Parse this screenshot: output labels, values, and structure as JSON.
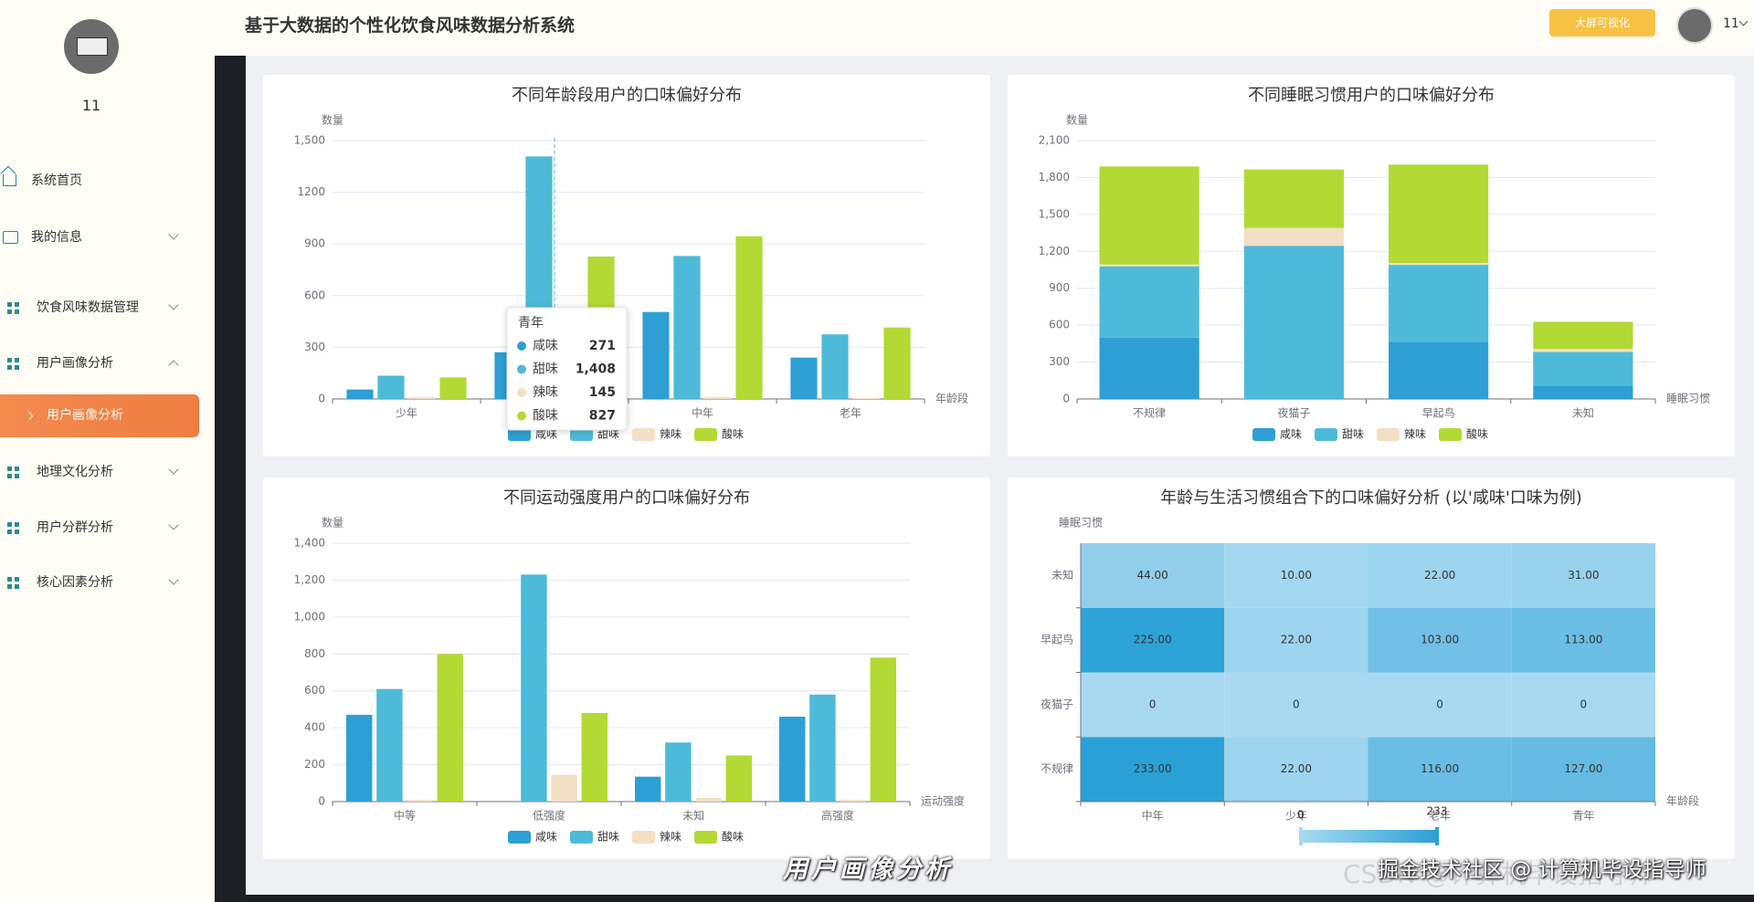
{
  "sidebar": {
    "user_name": "11",
    "menu": [
      "系统首页",
      "我的信息",
      "饮食风味数据管理",
      "用户画像分析",
      "用户画像分析",
      "地理文化分析",
      "用户分群分析",
      "核心因素分析"
    ]
  },
  "header": {
    "title": "基于大数据的个性化饮食风味数据分析系统",
    "button": "大屏可视化",
    "user_name": "11"
  },
  "chart_data": [
    {
      "type": "bar",
      "title": "不同年龄段用户的口味偏好分布",
      "y_label": "数量",
      "x_label": "年龄段",
      "categories": [
        "少年",
        "青年",
        "中年",
        "老年"
      ],
      "series": [
        {
          "name": "咸味",
          "color": "#2e9fd4",
          "values": [
            55,
            271,
            505,
            240
          ]
        },
        {
          "name": "甜味",
          "color": "#4dbad9",
          "values": [
            135,
            1408,
            830,
            375
          ]
        },
        {
          "name": "辣味",
          "color": "#f3dfc3",
          "values": [
            10,
            145,
            12,
            5
          ]
        },
        {
          "name": "酸味",
          "color": "#b3d935",
          "values": [
            125,
            827,
            945,
            415
          ]
        }
      ],
      "ylim": [
        0,
        1500
      ],
      "yticks": [
        0,
        300,
        600,
        900,
        1200,
        {
          "value": 1500,
          "label": "1,500"
        }
      ],
      "grid": true,
      "legend": "bottom",
      "tooltip": {
        "title": "青年",
        "labels": [
          "271",
          "1,408",
          "145",
          "827"
        ]
      }
    },
    {
      "type": "bar",
      "stacked": true,
      "title": "不同睡眠习惯用户的口味偏好分布",
      "y_label": "数量",
      "x_label": "睡眠习惯",
      "categories": [
        "不规律",
        "夜猫子",
        "早起鸟",
        "未知"
      ],
      "series": [
        {
          "name": "咸味",
          "color": "#2e9fd4",
          "values": [
            498,
            0,
            463,
            107
          ]
        },
        {
          "name": "甜味",
          "color": "#4dbad9",
          "values": [
            580,
            1245,
            627,
            275
          ]
        },
        {
          "name": "辣味",
          "color": "#f3dfc3",
          "values": [
            15,
            145,
            15,
            25
          ]
        },
        {
          "name": "酸味",
          "color": "#b3d935",
          "values": [
            797,
            475,
            800,
            220
          ]
        }
      ],
      "ylim": [
        0,
        2100
      ],
      "yticks": [
        0,
        300,
        600,
        900,
        {
          "value": 1200,
          "label": "1,200"
        },
        {
          "value": 1500,
          "label": "1,500"
        },
        {
          "value": 1800,
          "label": "1,800"
        },
        {
          "value": 2100,
          "label": "2,100"
        }
      ],
      "grid": true,
      "legend": "bottom"
    },
    {
      "type": "bar",
      "title": "不同运动强度用户的口味偏好分布",
      "y_label": "数量",
      "x_label": "运动强度",
      "categories": [
        "中等",
        "低强度",
        "未知",
        "高强度"
      ],
      "series": [
        {
          "name": "咸味",
          "color": "#2e9fd4",
          "values": [
            470,
            0,
            135,
            460
          ]
        },
        {
          "name": "甜味",
          "color": "#4dbad9",
          "values": [
            610,
            1230,
            320,
            580
          ]
        },
        {
          "name": "辣味",
          "color": "#f3dfc3",
          "values": [
            10,
            145,
            20,
            10
          ]
        },
        {
          "name": "酸味",
          "color": "#b3d935",
          "values": [
            800,
            480,
            250,
            780
          ]
        }
      ],
      "ylim": [
        0,
        1400
      ],
      "yticks": [
        0,
        200,
        400,
        600,
        800,
        {
          "value": 1000,
          "label": "1,000"
        },
        {
          "value": 1200,
          "label": "1,200"
        },
        {
          "value": 1400,
          "label": "1,400"
        }
      ],
      "grid": true,
      "legend": "bottom"
    },
    {
      "type": "heatmap",
      "title": "年龄与生活习惯组合下的口味偏好分析 (以'咸味'口味为例)",
      "y_label": "睡眠习惯",
      "x_label": "年龄段",
      "x_categories": [
        "中年",
        "少年",
        "老年",
        "青年"
      ],
      "y_categories": [
        "不规律",
        "夜猫子",
        "早起鸟",
        "未知"
      ],
      "values": [
        [
          233,
          22,
          116,
          127
        ],
        [
          0,
          0,
          0,
          0
        ],
        [
          225,
          22,
          103,
          113
        ],
        [
          44,
          10,
          22,
          31
        ]
      ],
      "value_labels": [
        [
          "233.00",
          "22.00",
          "116.00",
          "127.00"
        ],
        [
          "0",
          "0",
          "0",
          "0"
        ],
        [
          "225.00",
          "22.00",
          "103.00",
          "113.00"
        ],
        [
          "44.00",
          "10.00",
          "22.00",
          "31.00"
        ]
      ],
      "visual_map": {
        "min": 0,
        "max": 233,
        "colors": [
          "#a9d9f1",
          "#2aa1d6"
        ]
      }
    }
  ],
  "overlay": {
    "caption": "用户画像分析",
    "watermark": "掘金技术社区 @ 计算机毕设指导师",
    "faint_watermark": "CSDN @计算机毕设指导师"
  }
}
